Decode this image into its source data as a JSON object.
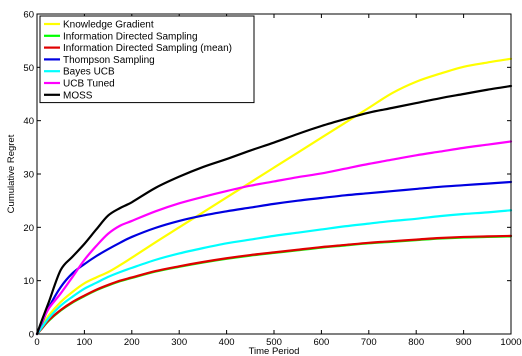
{
  "chart_data": {
    "type": "line",
    "title": "",
    "xlabel": "Time Period",
    "ylabel": "Cumulative Regret",
    "xlim": [
      0,
      1000
    ],
    "ylim": [
      0,
      60
    ],
    "xticks": [
      0,
      100,
      200,
      300,
      400,
      500,
      600,
      700,
      800,
      900,
      1000
    ],
    "yticks": [
      0,
      10,
      20,
      30,
      40,
      50,
      60
    ],
    "grid": false,
    "legend_position": "top-left",
    "x": [
      0,
      10,
      25,
      50,
      75,
      100,
      125,
      150,
      175,
      200,
      250,
      300,
      350,
      400,
      450,
      500,
      550,
      600,
      650,
      700,
      750,
      800,
      850,
      900,
      950,
      1000
    ],
    "series": [
      {
        "name": "Knowledge Gradient",
        "color": "#ffff00",
        "values": [
          0,
          1.5,
          3.5,
          6.0,
          7.9,
          9.5,
          10.6,
          11.6,
          12.9,
          14.3,
          17.2,
          20.0,
          22.8,
          25.6,
          28.4,
          31.2,
          34.0,
          36.8,
          39.6,
          42.4,
          45.2,
          47.3,
          48.8,
          50.1,
          50.9,
          51.6
        ]
      },
      {
        "name": "Information Directed Sampling",
        "color": "#00ff00",
        "values": [
          0,
          1.0,
          2.5,
          4.4,
          5.9,
          7.1,
          8.2,
          9.1,
          9.9,
          10.5,
          11.7,
          12.6,
          13.4,
          14.1,
          14.7,
          15.2,
          15.7,
          16.2,
          16.6,
          17.0,
          17.3,
          17.6,
          17.9,
          18.1,
          18.2,
          18.3
        ]
      },
      {
        "name": "Information Directed Sampling (mean)",
        "color": "#e00000",
        "values": [
          0,
          1.0,
          2.6,
          4.5,
          6.0,
          7.2,
          8.3,
          9.2,
          10.0,
          10.6,
          11.8,
          12.7,
          13.5,
          14.2,
          14.8,
          15.3,
          15.8,
          16.3,
          16.7,
          17.1,
          17.4,
          17.7,
          18.0,
          18.2,
          18.3,
          18.4
        ]
      },
      {
        "name": "Thompson Sampling",
        "color": "#0000e0",
        "values": [
          0,
          2.0,
          5.0,
          8.8,
          11.4,
          13.1,
          14.6,
          15.9,
          17.1,
          18.2,
          19.9,
          21.2,
          22.2,
          23.0,
          23.7,
          24.4,
          25.0,
          25.5,
          26.0,
          26.4,
          26.8,
          27.2,
          27.6,
          27.9,
          28.2,
          28.5
        ]
      },
      {
        "name": "Bayes UCB",
        "color": "#00ffff",
        "values": [
          0,
          1.2,
          3.0,
          5.3,
          7.0,
          8.5,
          9.6,
          10.7,
          11.6,
          12.4,
          13.9,
          15.1,
          16.1,
          17.0,
          17.7,
          18.4,
          19.0,
          19.6,
          20.2,
          20.7,
          21.2,
          21.6,
          22.1,
          22.5,
          22.8,
          23.2
        ]
      },
      {
        "name": "UCB Tuned",
        "color": "#ff00ff",
        "values": [
          0,
          2.2,
          4.8,
          7.6,
          10.7,
          13.9,
          16.5,
          18.8,
          20.3,
          21.2,
          23.0,
          24.5,
          25.7,
          26.8,
          27.8,
          28.6,
          29.4,
          30.1,
          31.0,
          31.9,
          32.7,
          33.5,
          34.2,
          34.9,
          35.5,
          36.1
        ]
      },
      {
        "name": "MOSS",
        "color": "#000000",
        "values": [
          0,
          2.5,
          6.0,
          12.0,
          14.5,
          16.9,
          19.6,
          22.2,
          23.6,
          24.7,
          27.4,
          29.5,
          31.3,
          32.8,
          34.4,
          35.9,
          37.5,
          39.0,
          40.3,
          41.5,
          42.4,
          43.3,
          44.2,
          45.0,
          45.8,
          46.5
        ]
      }
    ]
  }
}
